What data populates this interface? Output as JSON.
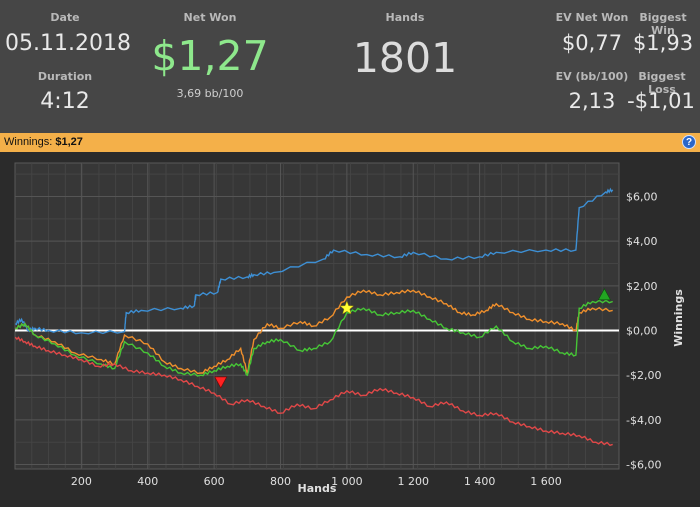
{
  "stats": {
    "date_label": "Date",
    "date": "05.11.2018",
    "duration_label": "Duration",
    "duration": "4:12",
    "net_won_label": "Net Won",
    "net_won": "$1,27",
    "bb_per_100": "3,69 bb/100",
    "hands_label": "Hands",
    "hands": "1801",
    "ev_net_won_label": "EV Net Won",
    "ev_net_won": "$0,77",
    "biggest_win_label": "Biggest Win",
    "biggest_win": "$1,93",
    "ev_bb_label": "EV (bb/100)",
    "ev_bb": "2,13",
    "biggest_loss_label": "Biggest Loss",
    "biggest_loss": "-$1,01"
  },
  "bar": {
    "label": "Winnings:",
    "value": "$1,27",
    "help": "?"
  },
  "colors": {
    "net_won": "#8ee88c",
    "blue": "#3d8fd4",
    "orange": "#ef8f2c",
    "green": "#46c636",
    "red": "#e04848",
    "zero": "#ffffff"
  },
  "chart_data": {
    "type": "line",
    "xlabel": "Hands",
    "ylabel": "Winnings",
    "xlim": [
      0,
      1820
    ],
    "ylim": [
      -6.2,
      7.5
    ],
    "x_ticks": [
      200,
      400,
      600,
      800,
      1000,
      1200,
      1400,
      1600
    ],
    "x_tick_labels": [
      "200",
      "400",
      "600",
      "800",
      "1 000",
      "1 200",
      "1 400",
      "1 600"
    ],
    "y_ticks": [
      6,
      4,
      2,
      0,
      -2,
      -4,
      -6
    ],
    "y_tick_labels": [
      "$6,00",
      "$4,00",
      "$2,00",
      "$0,00",
      "-$2,00",
      "-$4,00",
      "-$6,00"
    ],
    "series": [
      {
        "color": "blue",
        "x": [
          1,
          20,
          40,
          60,
          100,
          200,
          330,
          335,
          380,
          500,
          540,
          545,
          610,
          620,
          700,
          720,
          780,
          930,
          960,
          1060,
          1160,
          1200,
          1300,
          1400,
          1450,
          1600,
          1690,
          1700,
          1780,
          1801
        ],
        "y": [
          0.3,
          0.5,
          0.0,
          0.1,
          0.0,
          -0.1,
          -0.05,
          0.8,
          0.9,
          1.0,
          1.1,
          1.6,
          1.7,
          2.3,
          2.4,
          2.5,
          2.6,
          3.2,
          3.6,
          3.4,
          3.3,
          3.5,
          3.2,
          3.3,
          3.5,
          3.6,
          3.6,
          5.5,
          6.2,
          6.3
        ]
      },
      {
        "color": "orange",
        "x": [
          1,
          30,
          60,
          120,
          180,
          260,
          300,
          330,
          400,
          450,
          500,
          560,
          600,
          640,
          680,
          700,
          720,
          760,
          800,
          860,
          900,
          950,
          1000,
          1050,
          1100,
          1150,
          1200,
          1250,
          1300,
          1340,
          1380,
          1420,
          1450,
          1500,
          1550,
          1600,
          1650,
          1690,
          1700,
          1740,
          1801
        ],
        "y": [
          0.1,
          0.3,
          -0.2,
          -0.5,
          -1.0,
          -1.3,
          -1.5,
          -0.2,
          -0.6,
          -1.4,
          -1.7,
          -1.9,
          -1.6,
          -1.3,
          -0.8,
          -1.9,
          -0.4,
          0.3,
          0.1,
          0.4,
          0.2,
          0.6,
          1.5,
          1.8,
          1.6,
          1.7,
          1.8,
          1.5,
          1.2,
          0.8,
          0.7,
          0.9,
          1.2,
          0.8,
          0.5,
          0.4,
          0.3,
          0.0,
          0.8,
          1.0,
          0.9
        ]
      },
      {
        "color": "green",
        "x": [
          1,
          30,
          60,
          120,
          180,
          260,
          300,
          330,
          400,
          450,
          500,
          560,
          600,
          640,
          680,
          700,
          720,
          760,
          800,
          860,
          900,
          950,
          1000,
          1050,
          1100,
          1150,
          1200,
          1250,
          1300,
          1350,
          1400,
          1450,
          1500,
          1550,
          1600,
          1650,
          1690,
          1700,
          1740,
          1801
        ],
        "y": [
          0.1,
          0.3,
          -0.2,
          -0.6,
          -1.1,
          -1.5,
          -1.7,
          -0.5,
          -1.0,
          -1.6,
          -1.9,
          -2.0,
          -1.8,
          -1.6,
          -1.5,
          -2.0,
          -0.8,
          -0.5,
          -0.4,
          -0.9,
          -0.8,
          -0.5,
          0.8,
          1.0,
          0.7,
          0.8,
          0.9,
          0.5,
          0.1,
          -0.1,
          -0.3,
          0.2,
          -0.5,
          -0.8,
          -0.7,
          -1.0,
          -1.1,
          1.0,
          1.3,
          1.3
        ]
      },
      {
        "color": "red",
        "x": [
          1,
          30,
          60,
          100,
          150,
          200,
          250,
          300,
          350,
          400,
          450,
          500,
          550,
          600,
          650,
          700,
          750,
          800,
          850,
          900,
          950,
          1000,
          1050,
          1100,
          1150,
          1200,
          1250,
          1300,
          1350,
          1400,
          1450,
          1500,
          1550,
          1600,
          1650,
          1700,
          1750,
          1801
        ],
        "y": [
          -0.3,
          -0.5,
          -0.7,
          -0.9,
          -1.1,
          -1.3,
          -1.6,
          -1.5,
          -1.8,
          -1.9,
          -2.0,
          -2.2,
          -2.5,
          -2.8,
          -3.3,
          -3.1,
          -3.4,
          -3.7,
          -3.3,
          -3.5,
          -3.1,
          -2.7,
          -2.9,
          -2.6,
          -2.8,
          -3.0,
          -3.4,
          -3.2,
          -3.6,
          -3.8,
          -3.7,
          -4.1,
          -4.3,
          -4.5,
          -4.6,
          -4.7,
          -5.0,
          -5.1
        ]
      }
    ],
    "markers": [
      {
        "shape": "star",
        "color": "#ffff33",
        "x": 1000,
        "y": 1.0
      },
      {
        "shape": "triangle-down",
        "color": "#ff2222",
        "x": 620,
        "y": -2.3
      },
      {
        "shape": "triangle-up",
        "color": "#22a522",
        "x": 1776,
        "y": 1.6
      }
    ]
  }
}
